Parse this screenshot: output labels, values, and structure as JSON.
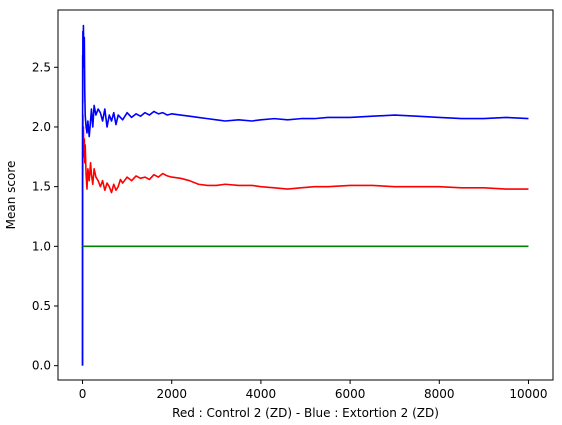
{
  "chart_data": {
    "type": "line",
    "title": "",
    "xlabel": "Red : Control 2 (ZD) - Blue : Extortion 2 (ZD)",
    "ylabel": "Mean score",
    "xlim": [
      -550,
      10550
    ],
    "ylim": [
      -0.12,
      2.98
    ],
    "xticks": [
      0,
      2000,
      4000,
      6000,
      8000,
      10000
    ],
    "xtick_labels": [
      "0",
      "2000",
      "4000",
      "6000",
      "8000",
      "10000"
    ],
    "yticks": [
      0.0,
      0.5,
      1.0,
      1.5,
      2.0,
      2.5
    ],
    "ytick_labels": [
      "0.0",
      "0.5",
      "1.0",
      "1.5",
      "2.0",
      "2.5"
    ],
    "grid": false,
    "legend": "none",
    "series": [
      {
        "color": "#ff0000",
        "x": [
          0,
          1,
          3,
          5,
          8,
          12,
          20,
          30,
          40,
          50,
          60,
          80,
          100,
          120,
          150,
          180,
          200,
          230,
          260,
          300,
          350,
          400,
          450,
          500,
          550,
          600,
          650,
          700,
          750,
          800,
          850,
          900,
          1000,
          1100,
          1200,
          1300,
          1400,
          1500,
          1600,
          1700,
          1800,
          1900,
          2000,
          2200,
          2400,
          2600,
          2800,
          3000,
          3200,
          3500,
          3800,
          4000,
          4300,
          4600,
          4900,
          5200,
          5500,
          6000,
          6500,
          7000,
          7500,
          8000,
          8500,
          9000,
          9500,
          10000
        ],
        "values": [
          0.0,
          1.0,
          2.0,
          1.6,
          2.1,
          1.8,
          2.0,
          1.75,
          1.9,
          1.7,
          1.85,
          1.6,
          1.48,
          1.65,
          1.55,
          1.7,
          1.6,
          1.52,
          1.65,
          1.58,
          1.55,
          1.5,
          1.55,
          1.47,
          1.53,
          1.5,
          1.45,
          1.52,
          1.47,
          1.5,
          1.56,
          1.53,
          1.58,
          1.55,
          1.59,
          1.57,
          1.58,
          1.56,
          1.6,
          1.58,
          1.61,
          1.59,
          1.58,
          1.57,
          1.55,
          1.52,
          1.51,
          1.51,
          1.52,
          1.51,
          1.51,
          1.5,
          1.49,
          1.48,
          1.49,
          1.5,
          1.5,
          1.51,
          1.51,
          1.5,
          1.5,
          1.5,
          1.49,
          1.49,
          1.48,
          1.48
        ]
      },
      {
        "color": "#0000ff",
        "x": [
          0,
          1,
          3,
          5,
          8,
          12,
          20,
          30,
          40,
          50,
          60,
          80,
          100,
          120,
          150,
          180,
          200,
          230,
          260,
          300,
          350,
          400,
          450,
          500,
          550,
          600,
          650,
          700,
          750,
          800,
          850,
          900,
          1000,
          1100,
          1200,
          1300,
          1400,
          1500,
          1600,
          1700,
          1800,
          1900,
          2000,
          2200,
          2400,
          2600,
          2800,
          3000,
          3200,
          3500,
          3800,
          4000,
          4300,
          4600,
          4900,
          5200,
          5500,
          6000,
          6500,
          7000,
          7500,
          8000,
          8500,
          9000,
          9500,
          10000
        ],
        "values": [
          0.0,
          1.5,
          2.6,
          2.2,
          2.8,
          2.5,
          2.85,
          2.55,
          2.75,
          2.3,
          2.1,
          2.0,
          1.95,
          2.05,
          1.92,
          2.05,
          2.15,
          2.0,
          2.18,
          2.1,
          2.15,
          2.12,
          2.05,
          2.15,
          2.0,
          2.1,
          2.05,
          2.12,
          2.02,
          2.1,
          2.08,
          2.06,
          2.12,
          2.08,
          2.11,
          2.09,
          2.12,
          2.1,
          2.13,
          2.11,
          2.12,
          2.1,
          2.11,
          2.1,
          2.09,
          2.08,
          2.07,
          2.06,
          2.05,
          2.06,
          2.05,
          2.06,
          2.07,
          2.06,
          2.07,
          2.07,
          2.08,
          2.08,
          2.09,
          2.1,
          2.09,
          2.08,
          2.07,
          2.07,
          2.08,
          2.07
        ]
      },
      {
        "color": "#008000",
        "x": [
          0,
          10000
        ],
        "values": [
          1.0,
          1.0
        ]
      }
    ]
  }
}
